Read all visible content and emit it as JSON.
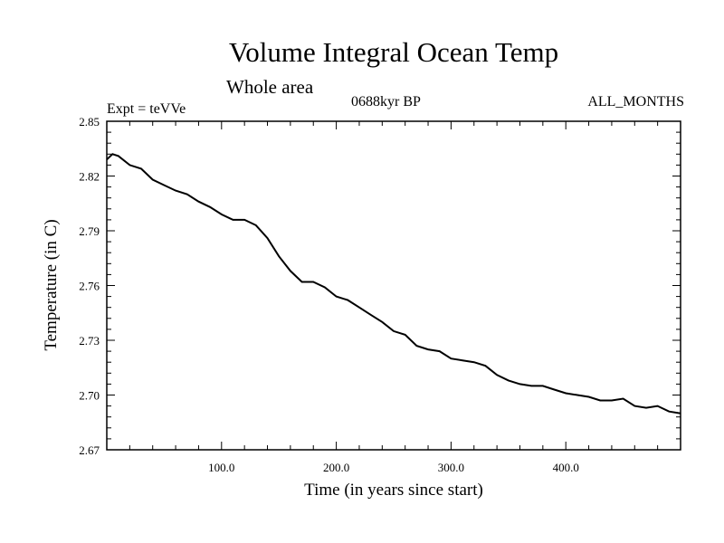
{
  "chart_data": {
    "type": "line",
    "title": "Volume Integral Ocean Temp",
    "subtitle": "Whole area",
    "annotations": {
      "experiment": "Expt = teVVe",
      "epoch": "0688kyr BP",
      "months": "ALL_MONTHS"
    },
    "xlabel": "Time (in years since start)",
    "ylabel": "Temperature (in C)",
    "xlim": [
      0,
      500
    ],
    "ylim": [
      2.67,
      2.85
    ],
    "x_ticks": [
      100,
      200,
      300,
      400
    ],
    "x_tick_labels": [
      "100.0",
      "200.0",
      "300.0",
      "400.0"
    ],
    "y_ticks": [
      2.67,
      2.7,
      2.73,
      2.76,
      2.79,
      2.82,
      2.85
    ],
    "y_tick_labels": [
      "2.67",
      "2.70",
      "2.73",
      "2.76",
      "2.79",
      "2.82",
      "2.85"
    ],
    "grid": false,
    "legend": "none",
    "line_color": "#000000",
    "series": [
      {
        "x": [
          0,
          5,
          10,
          20,
          30,
          40,
          50,
          60,
          70,
          80,
          90,
          100,
          110,
          120,
          130,
          140,
          150,
          160,
          170,
          180,
          190,
          200,
          210,
          220,
          230,
          240,
          250,
          260,
          270,
          280,
          290,
          300,
          310,
          320,
          330,
          340,
          350,
          360,
          370,
          380,
          390,
          400,
          410,
          420,
          430,
          440,
          450,
          460,
          470,
          480,
          490,
          500
        ],
        "y": [
          2.829,
          2.832,
          2.831,
          2.826,
          2.824,
          2.818,
          2.815,
          2.812,
          2.81,
          2.806,
          2.803,
          2.799,
          2.796,
          2.796,
          2.793,
          2.786,
          2.776,
          2.768,
          2.762,
          2.762,
          2.759,
          2.754,
          2.752,
          2.748,
          2.744,
          2.74,
          2.735,
          2.733,
          2.727,
          2.725,
          2.724,
          2.72,
          2.719,
          2.718,
          2.716,
          2.711,
          2.708,
          2.706,
          2.705,
          2.705,
          2.703,
          2.701,
          2.7,
          2.699,
          2.697,
          2.697,
          2.698,
          2.694,
          2.693,
          2.694,
          2.691,
          2.69
        ]
      }
    ]
  }
}
